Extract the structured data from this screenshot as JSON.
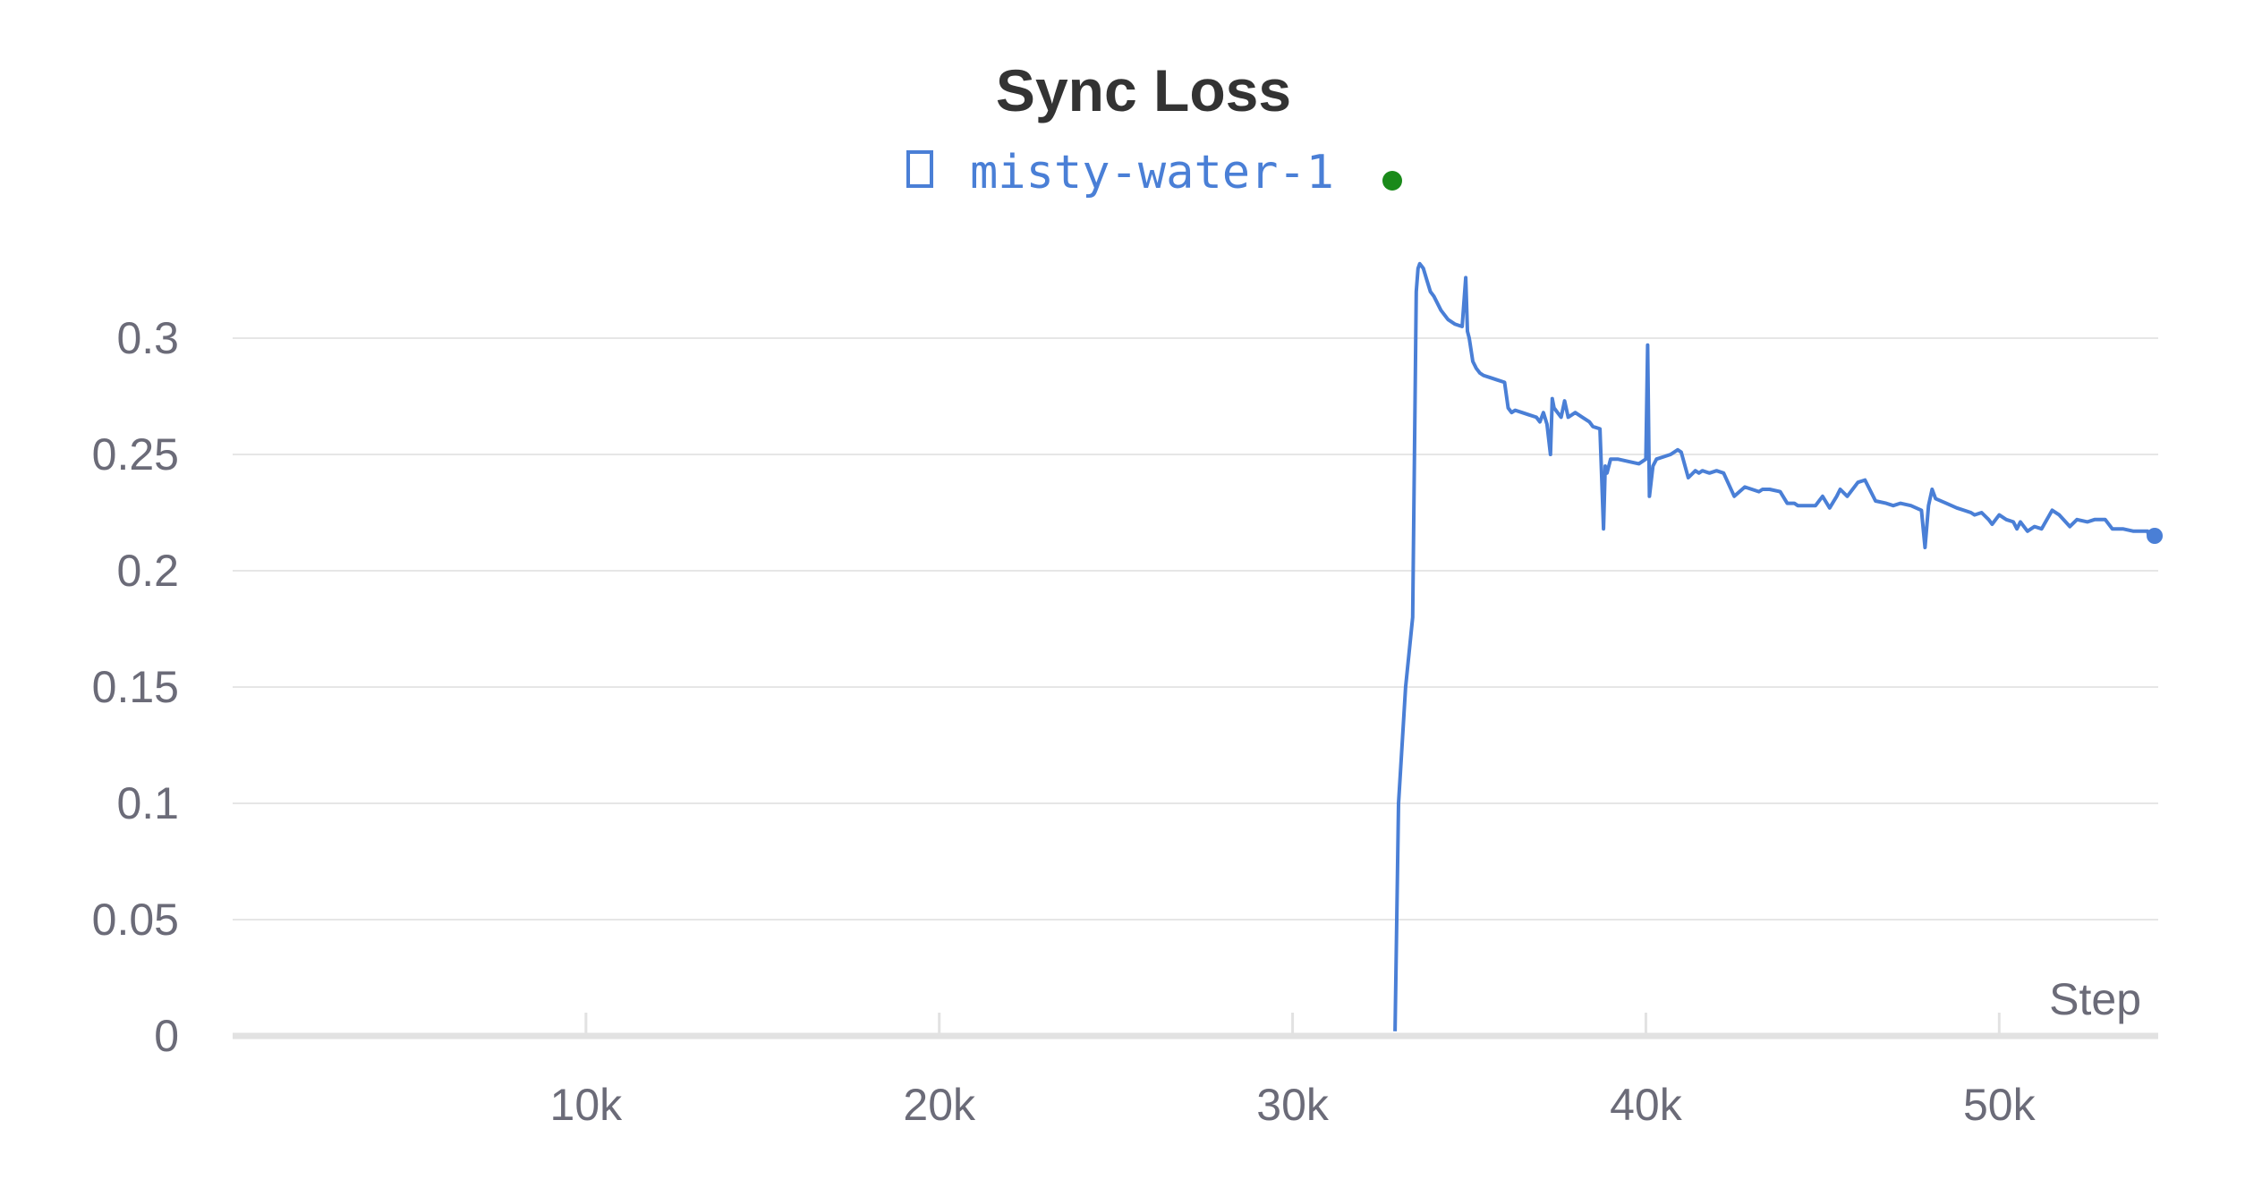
{
  "chart_data": {
    "type": "line",
    "title": "Sync Loss",
    "xlabel": "Step",
    "ylabel": "",
    "xlim": [
      0,
      54500
    ],
    "ylim": [
      0,
      0.33
    ],
    "grid": true,
    "legend_placement": "top-center",
    "x_ticks": [
      {
        "value": 10000,
        "label": "10k"
      },
      {
        "value": 20000,
        "label": "20k"
      },
      {
        "value": 30000,
        "label": "30k"
      },
      {
        "value": 40000,
        "label": "40k"
      },
      {
        "value": 50000,
        "label": "50k"
      }
    ],
    "y_ticks": [
      {
        "value": 0,
        "label": "0"
      },
      {
        "value": 0.05,
        "label": "0.05"
      },
      {
        "value": 0.1,
        "label": "0.1"
      },
      {
        "value": 0.15,
        "label": "0.15"
      },
      {
        "value": 0.2,
        "label": "0.2"
      },
      {
        "value": 0.25,
        "label": "0.25"
      },
      {
        "value": 0.3,
        "label": "0.3"
      }
    ],
    "series": [
      {
        "name": "misty-water-1",
        "color": "#4a7fd6",
        "status_color": "#1a8a1a",
        "x": [
          32900,
          33000,
          33200,
          33400,
          33500,
          33550,
          33600,
          33650,
          33700,
          33800,
          33900,
          34000,
          34200,
          34400,
          34600,
          34800,
          34900,
          34950,
          35000,
          35100,
          35200,
          35300,
          35400,
          35600,
          35800,
          36000,
          36100,
          36200,
          36300,
          36500,
          36700,
          36900,
          37000,
          37100,
          37200,
          37300,
          37350,
          37400,
          37500,
          37600,
          37700,
          37800,
          38000,
          38200,
          38400,
          38500,
          38700,
          38800,
          38850,
          38900,
          39000,
          39200,
          39500,
          39800,
          40000,
          40050,
          40100,
          40200,
          40300,
          40500,
          40700,
          40900,
          41000,
          41200,
          41400,
          41500,
          41600,
          41800,
          42000,
          42200,
          42500,
          42800,
          43000,
          43200,
          43300,
          43500,
          43800,
          44000,
          44200,
          44300,
          44500,
          44800,
          45000,
          45200,
          45400,
          45500,
          45700,
          45900,
          46000,
          46200,
          46500,
          46800,
          47000,
          47200,
          47500,
          47800,
          47900,
          48000,
          48100,
          48200,
          48500,
          48800,
          49000,
          49200,
          49300,
          49500,
          49700,
          49800,
          50000,
          50200,
          50400,
          50500,
          50600,
          50800,
          51000,
          51200,
          51500,
          51700,
          52000,
          52200,
          52500,
          52700,
          53000,
          53200,
          53500,
          53800,
          54000,
          54200,
          54250,
          54300,
          54400
        ],
        "y": [
          0.002,
          0.1,
          0.15,
          0.18,
          0.32,
          0.33,
          0.332,
          0.331,
          0.33,
          0.325,
          0.32,
          0.318,
          0.312,
          0.308,
          0.306,
          0.305,
          0.326,
          0.303,
          0.3,
          0.29,
          0.287,
          0.285,
          0.284,
          0.283,
          0.282,
          0.281,
          0.27,
          0.268,
          0.269,
          0.268,
          0.267,
          0.266,
          0.264,
          0.268,
          0.263,
          0.25,
          0.274,
          0.27,
          0.268,
          0.266,
          0.273,
          0.266,
          0.268,
          0.266,
          0.264,
          0.262,
          0.261,
          0.218,
          0.245,
          0.242,
          0.248,
          0.248,
          0.247,
          0.246,
          0.248,
          0.297,
          0.232,
          0.245,
          0.248,
          0.249,
          0.25,
          0.252,
          0.251,
          0.24,
          0.243,
          0.242,
          0.243,
          0.242,
          0.243,
          0.242,
          0.232,
          0.236,
          0.235,
          0.234,
          0.235,
          0.235,
          0.234,
          0.229,
          0.229,
          0.228,
          0.228,
          0.228,
          0.232,
          0.227,
          0.232,
          0.235,
          0.232,
          0.236,
          0.238,
          0.239,
          0.23,
          0.229,
          0.228,
          0.229,
          0.228,
          0.226,
          0.21,
          0.228,
          0.235,
          0.231,
          0.229,
          0.227,
          0.226,
          0.225,
          0.224,
          0.225,
          0.222,
          0.22,
          0.224,
          0.222,
          0.221,
          0.218,
          0.221,
          0.217,
          0.219,
          0.218,
          0.226,
          0.224,
          0.219,
          0.222,
          0.221,
          0.222,
          0.222,
          0.218,
          0.218,
          0.217,
          0.217,
          0.217,
          0.214,
          0.216,
          0.215
        ]
      }
    ]
  }
}
